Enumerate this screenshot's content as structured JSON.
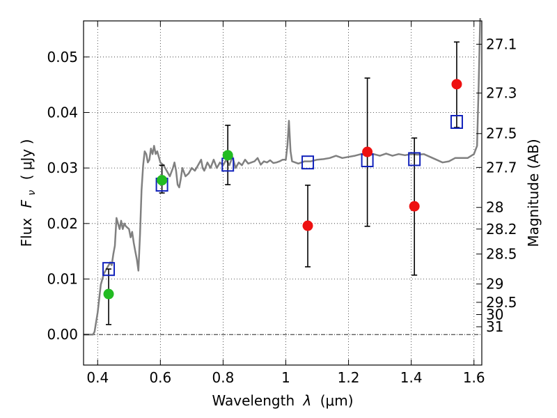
{
  "chart_data": {
    "type": "scatter",
    "xlabel_prefix": "Wavelength",
    "xlabel_symbol": "λ",
    "xlabel_unit": "(μm)",
    "ylabel_prefix": "Flux",
    "ylabel_symbol": "F",
    "ylabel_subscript": "ν",
    "ylabel_unit": "( μJy )",
    "y2label": "Magnitude (AB)",
    "xlim": [
      0.355,
      1.625
    ],
    "ylim": [
      -0.0055,
      0.0565
    ],
    "x_ticks": [
      0.4,
      0.6,
      0.8,
      1.0,
      1.2,
      1.4,
      1.6
    ],
    "x_tick_labels": [
      "0.4",
      "0.6",
      "0.8",
      "1",
      "1.2",
      "1.4",
      "1.6"
    ],
    "y_ticks": [
      0.0,
      0.01,
      0.02,
      0.03,
      0.04,
      0.05
    ],
    "y_tick_labels": [
      "0.00",
      "0.01",
      "0.02",
      "0.03",
      "0.04",
      "0.05"
    ],
    "mag_ticks": [
      {
        "label": "27.1",
        "flux": 0.0523
      },
      {
        "label": "27.3",
        "flux": 0.0435
      },
      {
        "label": "27.5",
        "flux": 0.0362
      },
      {
        "label": "27.7",
        "flux": 0.0301
      },
      {
        "label": "28",
        "flux": 0.0229
      },
      {
        "label": "28.2",
        "flux": 0.019
      },
      {
        "label": "28.5",
        "flux": 0.0145
      },
      {
        "label": "29",
        "flux": 0.0091
      },
      {
        "label": "29.5",
        "flux": 0.0058
      },
      {
        "label": "30",
        "flux": 0.0036
      },
      {
        "label": "31",
        "flux": 0.0014
      }
    ],
    "grid": true,
    "colors": {
      "model": "#808080",
      "green_points": "#22bb22",
      "red_points": "#ee1111",
      "model_boxes": "#1122bb",
      "errorbar": "#000000"
    },
    "model_spectrum": [
      [
        0.355,
        0.0
      ],
      [
        0.385,
        0.0
      ],
      [
        0.39,
        0.0005
      ],
      [
        0.4,
        0.004
      ],
      [
        0.41,
        0.009
      ],
      [
        0.42,
        0.011
      ],
      [
        0.43,
        0.012
      ],
      [
        0.44,
        0.013
      ],
      [
        0.445,
        0.0125
      ],
      [
        0.45,
        0.0145
      ],
      [
        0.455,
        0.016
      ],
      [
        0.46,
        0.021
      ],
      [
        0.47,
        0.019
      ],
      [
        0.475,
        0.0205
      ],
      [
        0.48,
        0.019
      ],
      [
        0.485,
        0.02
      ],
      [
        0.49,
        0.0195
      ],
      [
        0.5,
        0.019
      ],
      [
        0.505,
        0.0175
      ],
      [
        0.51,
        0.0185
      ],
      [
        0.515,
        0.0165
      ],
      [
        0.52,
        0.015
      ],
      [
        0.525,
        0.0135
      ],
      [
        0.53,
        0.0115
      ],
      [
        0.535,
        0.018
      ],
      [
        0.54,
        0.026
      ],
      [
        0.545,
        0.0305
      ],
      [
        0.55,
        0.033
      ],
      [
        0.555,
        0.0325
      ],
      [
        0.56,
        0.031
      ],
      [
        0.565,
        0.0315
      ],
      [
        0.57,
        0.0335
      ],
      [
        0.575,
        0.0325
      ],
      [
        0.58,
        0.034
      ],
      [
        0.585,
        0.0325
      ],
      [
        0.59,
        0.033
      ],
      [
        0.6,
        0.031
      ],
      [
        0.61,
        0.0305
      ],
      [
        0.62,
        0.0295
      ],
      [
        0.63,
        0.0285
      ],
      [
        0.64,
        0.03
      ],
      [
        0.645,
        0.031
      ],
      [
        0.65,
        0.0295
      ],
      [
        0.655,
        0.027
      ],
      [
        0.66,
        0.0265
      ],
      [
        0.665,
        0.028
      ],
      [
        0.67,
        0.03
      ],
      [
        0.68,
        0.0285
      ],
      [
        0.69,
        0.029
      ],
      [
        0.7,
        0.03
      ],
      [
        0.71,
        0.0295
      ],
      [
        0.72,
        0.0305
      ],
      [
        0.73,
        0.0315
      ],
      [
        0.735,
        0.03
      ],
      [
        0.74,
        0.0295
      ],
      [
        0.75,
        0.031
      ],
      [
        0.76,
        0.03
      ],
      [
        0.77,
        0.0315
      ],
      [
        0.78,
        0.03
      ],
      [
        0.79,
        0.031
      ],
      [
        0.8,
        0.0305
      ],
      [
        0.81,
        0.0315
      ],
      [
        0.82,
        0.0305
      ],
      [
        0.83,
        0.032
      ],
      [
        0.84,
        0.03
      ],
      [
        0.85,
        0.031
      ],
      [
        0.86,
        0.0305
      ],
      [
        0.87,
        0.0315
      ],
      [
        0.88,
        0.0308
      ],
      [
        0.89,
        0.031
      ],
      [
        0.9,
        0.0312
      ],
      [
        0.91,
        0.0318
      ],
      [
        0.92,
        0.0306
      ],
      [
        0.93,
        0.0312
      ],
      [
        0.94,
        0.031
      ],
      [
        0.95,
        0.0314
      ],
      [
        0.96,
        0.0309
      ],
      [
        0.97,
        0.031
      ],
      [
        0.98,
        0.0312
      ],
      [
        0.99,
        0.0315
      ],
      [
        1.0,
        0.0315
      ],
      [
        1.005,
        0.034
      ],
      [
        1.01,
        0.0385
      ],
      [
        1.015,
        0.033
      ],
      [
        1.02,
        0.0312
      ],
      [
        1.04,
        0.0308
      ],
      [
        1.06,
        0.0312
      ],
      [
        1.08,
        0.0312
      ],
      [
        1.1,
        0.0315
      ],
      [
        1.12,
        0.0316
      ],
      [
        1.14,
        0.0318
      ],
      [
        1.16,
        0.0322
      ],
      [
        1.18,
        0.0318
      ],
      [
        1.2,
        0.032
      ],
      [
        1.22,
        0.0322
      ],
      [
        1.24,
        0.0325
      ],
      [
        1.26,
        0.0322
      ],
      [
        1.28,
        0.0325
      ],
      [
        1.3,
        0.0322
      ],
      [
        1.32,
        0.0326
      ],
      [
        1.34,
        0.0322
      ],
      [
        1.36,
        0.0325
      ],
      [
        1.38,
        0.0323
      ],
      [
        1.4,
        0.0325
      ],
      [
        1.42,
        0.0324
      ],
      [
        1.44,
        0.0325
      ],
      [
        1.46,
        0.032
      ],
      [
        1.48,
        0.0315
      ],
      [
        1.5,
        0.031
      ],
      [
        1.52,
        0.0312
      ],
      [
        1.54,
        0.0318
      ],
      [
        1.56,
        0.0318
      ],
      [
        1.58,
        0.0318
      ],
      [
        1.6,
        0.0325
      ],
      [
        1.61,
        0.034
      ],
      [
        1.615,
        0.045
      ],
      [
        1.62,
        0.057
      ]
    ],
    "green_points": [
      {
        "x": 0.435,
        "y": 0.0073,
        "yerr_low": 0.0018,
        "yerr_high": 0.0118
      },
      {
        "x": 0.605,
        "y": 0.0278,
        "yerr_low": 0.0255,
        "yerr_high": 0.0305
      },
      {
        "x": 0.815,
        "y": 0.0323,
        "yerr_low": 0.027,
        "yerr_high": 0.0377
      }
    ],
    "red_points": [
      {
        "x": 1.07,
        "y": 0.0196,
        "yerr_low": 0.0122,
        "yerr_high": 0.0269
      },
      {
        "x": 1.26,
        "y": 0.0329,
        "yerr_low": 0.0195,
        "yerr_high": 0.0462
      },
      {
        "x": 1.41,
        "y": 0.0231,
        "yerr_low": 0.0107,
        "yerr_high": 0.0354
      },
      {
        "x": 1.545,
        "y": 0.0451,
        "yerr_low": 0.0373,
        "yerr_high": 0.0527
      }
    ],
    "model_boxes": [
      {
        "x": 0.435,
        "y": 0.0118
      },
      {
        "x": 0.605,
        "y": 0.027
      },
      {
        "x": 0.815,
        "y": 0.0306
      },
      {
        "x": 1.07,
        "y": 0.031
      },
      {
        "x": 1.26,
        "y": 0.0314
      },
      {
        "x": 1.41,
        "y": 0.0316
      },
      {
        "x": 1.545,
        "y": 0.0383
      }
    ]
  }
}
